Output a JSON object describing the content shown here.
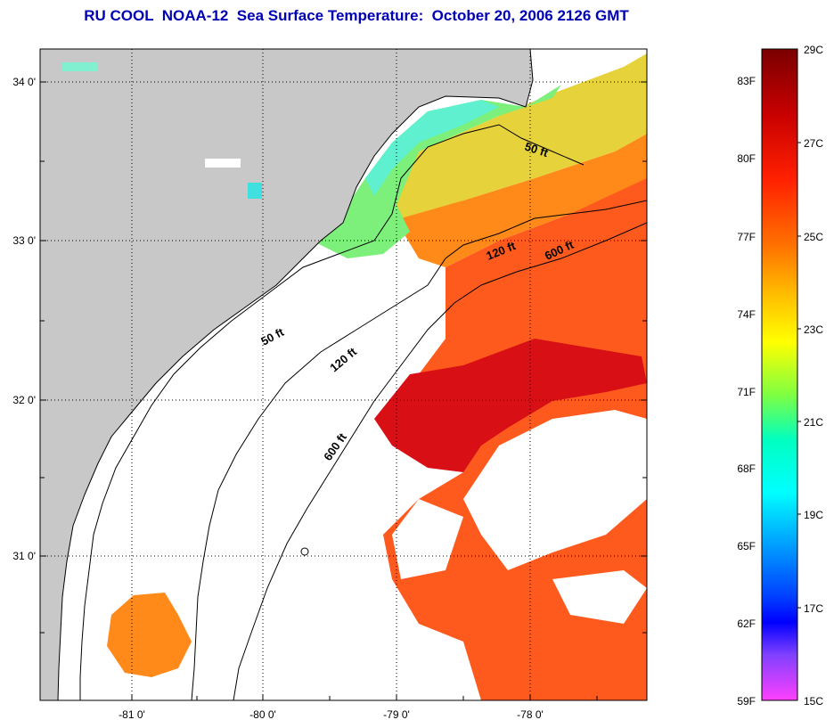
{
  "title": "RU COOL  NOAA-12  Sea Surface Temperature:  October 20, 2006 2126 GMT",
  "map": {
    "lat_ticks": [
      "34 0'",
      "33 0'",
      "32 0'",
      "31 0'"
    ],
    "lon_ticks": [
      "-81 0'",
      "-80 0'",
      "-79 0'",
      "-78 0'"
    ],
    "contours": [
      {
        "label": "50 ft",
        "instances": 2
      },
      {
        "label": "120 ft",
        "instances": 2
      },
      {
        "label": "600 ft",
        "instances": 2
      }
    ],
    "colors": {
      "land": "#c8c8c8",
      "cloud": "#ffffff",
      "grid": "#000000",
      "coast": "#000000"
    }
  },
  "colorbar": {
    "fahrenheit_labels": [
      "83F",
      "80F",
      "77F",
      "74F",
      "71F",
      "68F",
      "65F",
      "62F",
      "59F"
    ],
    "celsius_labels": [
      "29C",
      "27C",
      "25C",
      "23C",
      "21C",
      "19C",
      "17C",
      "15C"
    ],
    "range_c": [
      15,
      29
    ],
    "colors_top_to_bottom": [
      "#7a0000",
      "#c80000",
      "#ff2000",
      "#ff7000",
      "#ffc000",
      "#ffff00",
      "#80ff40",
      "#00ffc0",
      "#00ffff",
      "#00a0ff",
      "#0040ff",
      "#0000ff",
      "#8040ff",
      "#ff40ff"
    ]
  }
}
